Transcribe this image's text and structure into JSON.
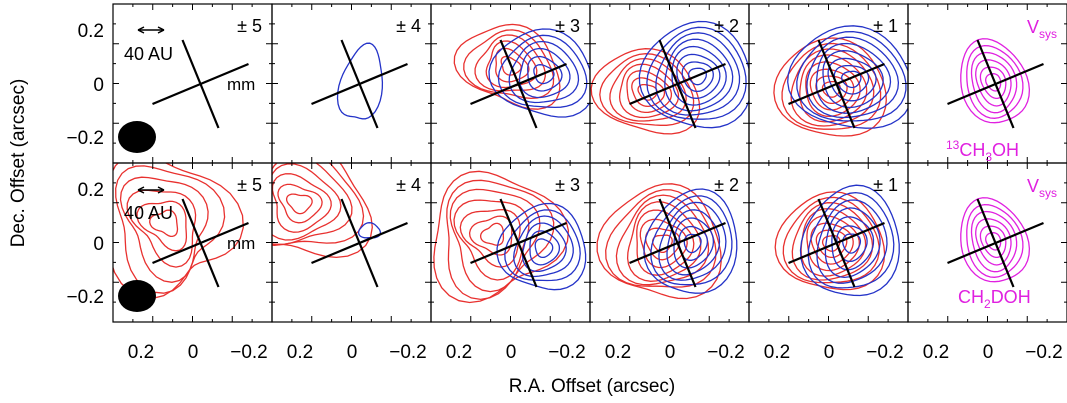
{
  "figure": {
    "ylabel": "Dec. Offset (arcsec)",
    "xlabel": "R.A. Offset (arcsec)",
    "y_ticks": [
      "0.2",
      "0",
      "−0.2"
    ],
    "x_ticks": [
      "0.2",
      "0",
      "−0.2"
    ],
    "scale_bar_text": "40 AU",
    "mm_text": "mm",
    "vsys_text": "V",
    "vsys_sub": "sys",
    "colors": {
      "red": "#e8312f",
      "blue": "#2433c8",
      "magenta": "#e020e0"
    }
  },
  "rows": [
    {
      "molecule": {
        "sup": "13",
        "pre": "CH",
        "sub": "3",
        "post": "OH"
      },
      "panels": [
        {
          "label": "± 5"
        },
        {
          "label": "± 4"
        },
        {
          "label": "± 3"
        },
        {
          "label": "± 2"
        },
        {
          "label": "± 1"
        },
        {
          "label": ""
        }
      ]
    },
    {
      "molecule": {
        "sup": "",
        "pre": "CH",
        "sub": "2",
        "post": "DOH"
      },
      "panels": [
        {
          "label": "± 5"
        },
        {
          "label": "± 4"
        },
        {
          "label": "± 3"
        },
        {
          "label": "± 2"
        },
        {
          "label": "± 1"
        },
        {
          "label": ""
        }
      ]
    }
  ]
}
